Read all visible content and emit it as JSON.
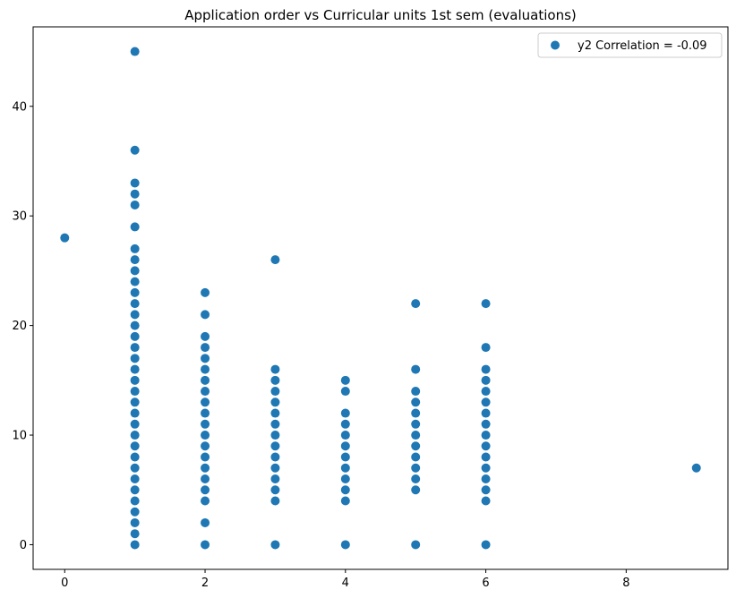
{
  "chart_data": {
    "type": "scatter",
    "title": "Application order vs Curricular units 1st sem (evaluations)",
    "xlabel": "",
    "ylabel": "",
    "xlim": [
      -0.45,
      9.45
    ],
    "ylim": [
      -2.25,
      47.25
    ],
    "xticks": [
      0,
      2,
      4,
      6,
      8
    ],
    "yticks": [
      0,
      10,
      20,
      30,
      40
    ],
    "grid": false,
    "legend_position": "top-right",
    "color": "#1f77b4",
    "series": [
      {
        "name": "y2 Correlation = -0.09",
        "points": [
          [
            0,
            28
          ],
          [
            1,
            0
          ],
          [
            1,
            1
          ],
          [
            1,
            2
          ],
          [
            1,
            3
          ],
          [
            1,
            4
          ],
          [
            1,
            5
          ],
          [
            1,
            6
          ],
          [
            1,
            7
          ],
          [
            1,
            8
          ],
          [
            1,
            9
          ],
          [
            1,
            10
          ],
          [
            1,
            11
          ],
          [
            1,
            12
          ],
          [
            1,
            13
          ],
          [
            1,
            14
          ],
          [
            1,
            15
          ],
          [
            1,
            16
          ],
          [
            1,
            17
          ],
          [
            1,
            18
          ],
          [
            1,
            19
          ],
          [
            1,
            20
          ],
          [
            1,
            21
          ],
          [
            1,
            22
          ],
          [
            1,
            23
          ],
          [
            1,
            24
          ],
          [
            1,
            25
          ],
          [
            1,
            26
          ],
          [
            1,
            27
          ],
          [
            1,
            29
          ],
          [
            1,
            31
          ],
          [
            1,
            32
          ],
          [
            1,
            33
          ],
          [
            1,
            36
          ],
          [
            1,
            45
          ],
          [
            2,
            0
          ],
          [
            2,
            2
          ],
          [
            2,
            4
          ],
          [
            2,
            5
          ],
          [
            2,
            6
          ],
          [
            2,
            7
          ],
          [
            2,
            8
          ],
          [
            2,
            9
          ],
          [
            2,
            10
          ],
          [
            2,
            11
          ],
          [
            2,
            12
          ],
          [
            2,
            13
          ],
          [
            2,
            14
          ],
          [
            2,
            15
          ],
          [
            2,
            16
          ],
          [
            2,
            17
          ],
          [
            2,
            18
          ],
          [
            2,
            19
          ],
          [
            2,
            21
          ],
          [
            2,
            23
          ],
          [
            3,
            0
          ],
          [
            3,
            4
          ],
          [
            3,
            5
          ],
          [
            3,
            6
          ],
          [
            3,
            7
          ],
          [
            3,
            8
          ],
          [
            3,
            9
          ],
          [
            3,
            10
          ],
          [
            3,
            11
          ],
          [
            3,
            12
          ],
          [
            3,
            13
          ],
          [
            3,
            14
          ],
          [
            3,
            15
          ],
          [
            3,
            16
          ],
          [
            3,
            26
          ],
          [
            4,
            0
          ],
          [
            4,
            4
          ],
          [
            4,
            5
          ],
          [
            4,
            6
          ],
          [
            4,
            7
          ],
          [
            4,
            8
          ],
          [
            4,
            9
          ],
          [
            4,
            10
          ],
          [
            4,
            11
          ],
          [
            4,
            12
          ],
          [
            4,
            14
          ],
          [
            4,
            15
          ],
          [
            5,
            0
          ],
          [
            5,
            5
          ],
          [
            5,
            6
          ],
          [
            5,
            7
          ],
          [
            5,
            8
          ],
          [
            5,
            9
          ],
          [
            5,
            10
          ],
          [
            5,
            11
          ],
          [
            5,
            12
          ],
          [
            5,
            13
          ],
          [
            5,
            14
          ],
          [
            5,
            16
          ],
          [
            5,
            22
          ],
          [
            6,
            0
          ],
          [
            6,
            4
          ],
          [
            6,
            5
          ],
          [
            6,
            6
          ],
          [
            6,
            7
          ],
          [
            6,
            8
          ],
          [
            6,
            9
          ],
          [
            6,
            10
          ],
          [
            6,
            11
          ],
          [
            6,
            12
          ],
          [
            6,
            13
          ],
          [
            6,
            14
          ],
          [
            6,
            15
          ],
          [
            6,
            16
          ],
          [
            6,
            18
          ],
          [
            6,
            22
          ],
          [
            9,
            7
          ]
        ]
      }
    ]
  }
}
